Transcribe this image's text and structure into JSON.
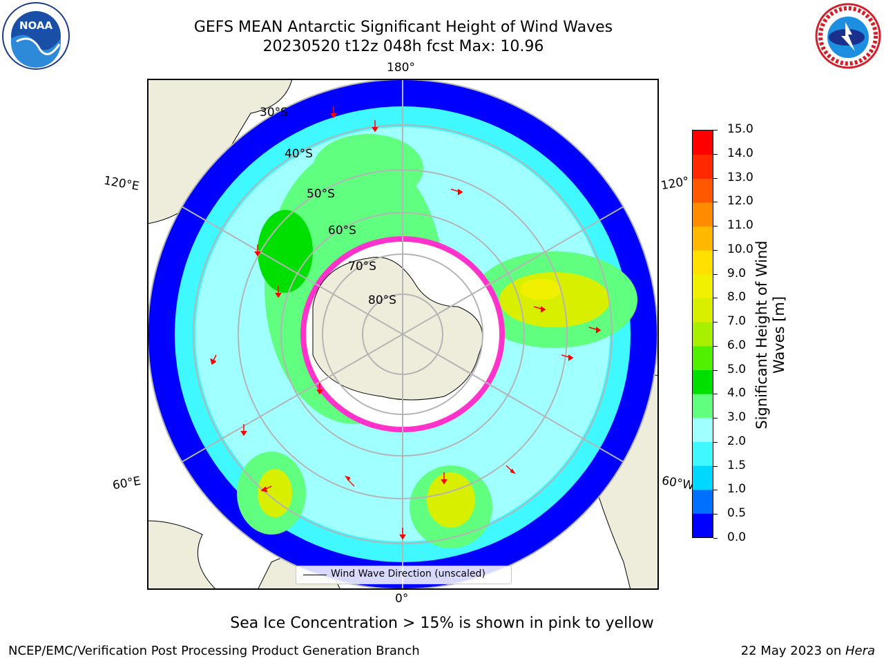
{
  "title": {
    "line1": "GEFS MEAN Antarctic Significant Height of Wind Waves",
    "line2": "20230520 t12z 048h fcst   Max: 10.96"
  },
  "map": {
    "projection": "south-polar-stereographic",
    "lon_labels": {
      "top": "180°",
      "bottom": "0°",
      "left_upper": "120°E",
      "left_lower": "60°E",
      "right_upper": "120°",
      "right_lower": "60°W"
    },
    "lat_labels": [
      "30°S",
      "40°S",
      "50°S",
      "60°S",
      "70°S",
      "80°S"
    ],
    "land_color": "#eeeddb",
    "sea_ice_color": "#ff33cc",
    "arrow_color": "#ff0000"
  },
  "legend": {
    "label": "Wind Wave Direction (unscaled)"
  },
  "colorbar": {
    "label_line1": "Significant Height of Wind",
    "label_line2": "Waves [m]",
    "ticks": [
      "15.0",
      "14.0",
      "13.0",
      "12.0",
      "11.0",
      "10.0",
      "9.0",
      "8.0",
      "7.0",
      "6.0",
      "5.0",
      "4.0",
      "3.0",
      "2.0",
      "1.5",
      "1.0",
      "0.5",
      "0.0"
    ],
    "colors": [
      "#0000ff",
      "#0070ff",
      "#00d8ff",
      "#40f8ff",
      "#a0ffff",
      "#60ff80",
      "#00e000",
      "#50f000",
      "#a8f000",
      "#d8f000",
      "#f0f000",
      "#ffe000",
      "#ffb800",
      "#ff8c00",
      "#ff5800",
      "#ff2800",
      "#ff0000"
    ]
  },
  "footer": {
    "note": "Sea Ice Concentration > 15% is shown in pink to yellow",
    "credit": "NCEP/EMC/Verification Post Processing Product Generation Branch",
    "date_prefix": "22 May 2023 on ",
    "host": "Hera"
  },
  "logos": {
    "noaa_text": "NOAA",
    "nws_text": "NATIONAL WEATHER SERVICE"
  }
}
